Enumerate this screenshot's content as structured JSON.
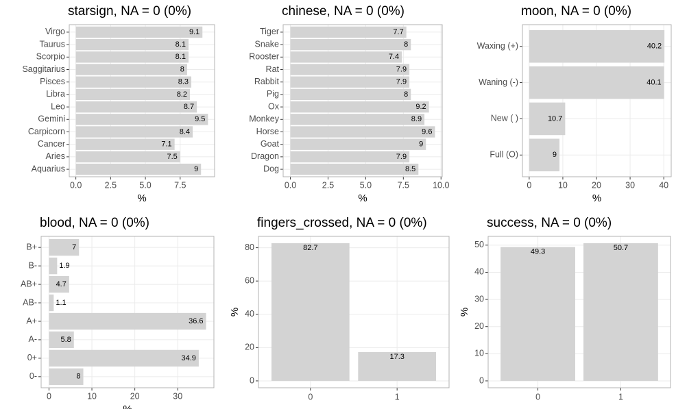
{
  "chart_data": [
    {
      "type": "bar",
      "orientation": "horizontal",
      "title": "starsign, NA = 0 (0%)",
      "xlabel": "%",
      "color": "#d3d3d3",
      "categories": [
        "Virgo",
        "Taurus",
        "Scorpio",
        "Saggitarius",
        "Pisces",
        "Libra",
        "Leo",
        "Gemini",
        "Carpicorn",
        "Cancer",
        "Aries",
        "Aquarius"
      ],
      "values": [
        9.1,
        8.1,
        8.1,
        8,
        8.3,
        8.2,
        8.7,
        9.5,
        8.4,
        7.1,
        7.5,
        9
      ],
      "xlim": [
        -0.475,
        9.975
      ],
      "xticks": [
        {
          "value": 0,
          "label": "0.0"
        },
        2.5,
        {
          "value": 5,
          "label": "5.0"
        },
        7.5
      ],
      "grid": true
    },
    {
      "type": "bar",
      "orientation": "horizontal",
      "title": "chinese, NA = 0 (0%)",
      "xlabel": "%",
      "color": "#d3d3d3",
      "categories": [
        "Tiger",
        "Snake",
        "Rooster",
        "Rat",
        "Rabbit",
        "Pig",
        "Ox",
        "Monkey",
        "Horse",
        "Goat",
        "Dragon",
        "Dog"
      ],
      "values": [
        7.7,
        8,
        7.4,
        7.9,
        7.9,
        8,
        9.2,
        8.9,
        9.6,
        9,
        7.9,
        8.5
      ],
      "xlim": [
        -0.48,
        10.08
      ],
      "xticks": [
        {
          "value": 0,
          "label": "0.0"
        },
        2.5,
        {
          "value": 5,
          "label": "5.0"
        },
        7.5,
        {
          "value": 10,
          "label": "10.0"
        }
      ],
      "grid": true
    },
    {
      "type": "bar",
      "orientation": "horizontal",
      "title": "moon, NA = 0 (0%)",
      "xlabel": "%",
      "color": "#d3d3d3",
      "categories": [
        "Waxing (+)",
        "Waning (-)",
        "New ( )",
        "Full (O)"
      ],
      "values": [
        40.2,
        40.1,
        10.7,
        9
      ],
      "xlim": [
        -2.01,
        42.21
      ],
      "xticks": [
        0,
        10,
        20,
        30,
        40
      ],
      "grid": true
    },
    {
      "type": "bar",
      "orientation": "horizontal",
      "title": "blood, NA = 0 (0%)",
      "xlabel": "%",
      "color": "#d3d3d3",
      "categories": [
        "B+",
        "B-",
        "AB+",
        "AB-",
        "A+",
        "A-",
        "0+",
        "0-"
      ],
      "values": [
        7,
        1.9,
        4.7,
        1.1,
        36.6,
        5.8,
        34.9,
        8
      ],
      "xlim": [
        -1.83,
        38.43
      ],
      "xticks": [
        0,
        10,
        20,
        30
      ],
      "grid": true
    },
    {
      "type": "bar",
      "orientation": "vertical",
      "title": "fingers_crossed, NA = 0 (0%)",
      "ylabel": "%",
      "color": "#d3d3d3",
      "categories": [
        "0",
        "1"
      ],
      "values": [
        82.7,
        17.3
      ],
      "ylim": [
        -4.135,
        86.835
      ],
      "yticks": [
        0,
        20,
        40,
        60,
        80
      ],
      "grid": true
    },
    {
      "type": "bar",
      "orientation": "vertical",
      "title": "success, NA = 0 (0%)",
      "ylabel": "%",
      "color": "#d3d3d3",
      "categories": [
        "0",
        "1"
      ],
      "values": [
        49.3,
        50.7
      ],
      "ylim": [
        -2.535,
        53.235
      ],
      "yticks": [
        0,
        10,
        20,
        30,
        40,
        50
      ],
      "grid": true
    }
  ]
}
